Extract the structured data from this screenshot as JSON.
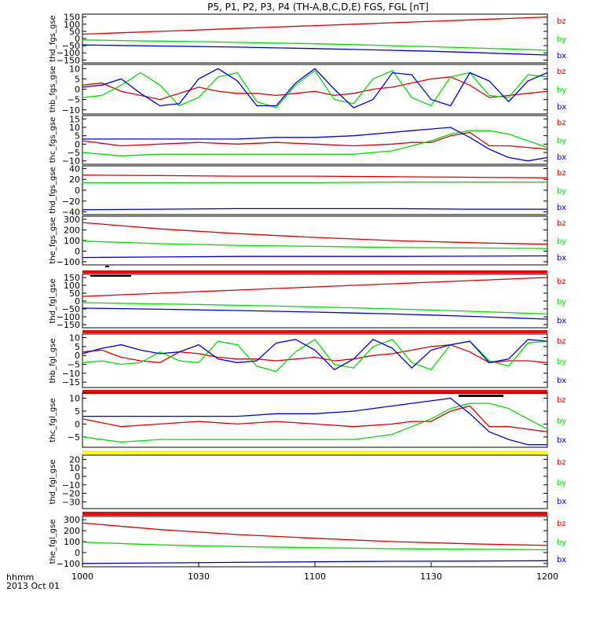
{
  "title": "P5, P1, P2, P3, P4 (TH-A,B,C,D,E) FGS, FGL [nT]",
  "x_axis": {
    "ticks": [
      "1000",
      "1030",
      "1100",
      "1130",
      "1200"
    ],
    "label_line1": "hhmm",
    "label_line2": "2013 Oct 01"
  },
  "colors": {
    "bz": "#dd0000",
    "by": "#00dd00",
    "bx": "#0000dd",
    "bar_red": "#ff0000",
    "bar_yellow": "#ffff00",
    "bar_black": "#000000"
  },
  "chart_data": [
    {
      "type": "line",
      "ylabel": "thd_fgs_gse",
      "yticks": [
        "150",
        "100",
        "50",
        "0",
        "−50",
        "−100",
        "−150"
      ],
      "ylim": [
        -170,
        170
      ],
      "x": [
        1000,
        1010,
        1020,
        1030,
        1040,
        1050,
        1100,
        1110,
        1120,
        1130,
        1140,
        1150,
        1200
      ],
      "series": [
        {
          "name": "bz",
          "values": [
            30,
            40,
            50,
            60,
            70,
            80,
            90,
            100,
            110,
            120,
            130,
            140,
            150
          ]
        },
        {
          "name": "by",
          "values": [
            -10,
            -14,
            -18,
            -22,
            -27,
            -32,
            -37,
            -43,
            -50,
            -57,
            -65,
            -73,
            -82
          ]
        },
        {
          "name": "bx",
          "values": [
            -45,
            -48,
            -52,
            -56,
            -60,
            -65,
            -70,
            -76,
            -82,
            -89,
            -97,
            -106,
            -115
          ]
        }
      ],
      "legend": [
        "bz",
        "by",
        "bx"
      ]
    },
    {
      "type": "line",
      "ylabel": "thb_fgs_gse",
      "yticks": [
        "10",
        "5",
        "0",
        "−5",
        "−10"
      ],
      "ylim": [
        -12,
        12
      ],
      "x": [
        1000,
        1005,
        1010,
        1015,
        1020,
        1025,
        1030,
        1035,
        1040,
        1045,
        1050,
        1055,
        1100,
        1105,
        1110,
        1115,
        1120,
        1125,
        1130,
        1135,
        1140,
        1145,
        1150,
        1155,
        1200
      ],
      "series": [
        {
          "name": "bz",
          "values": [
            2,
            3,
            -1,
            -3,
            -5,
            -2,
            1,
            -1,
            -2,
            -2,
            -3,
            -2,
            -1,
            -3,
            -2,
            0,
            1,
            3,
            5,
            6,
            2,
            -4,
            -3,
            -2,
            -1
          ]
        },
        {
          "name": "by",
          "values": [
            -4,
            -3,
            2,
            8,
            2,
            -8,
            -4,
            6,
            8,
            -6,
            -9,
            2,
            9,
            -5,
            -7,
            5,
            9,
            -4,
            -8,
            6,
            8,
            -3,
            -4,
            7,
            6
          ]
        },
        {
          "name": "bx",
          "values": [
            1,
            2,
            5,
            -2,
            -8,
            -7,
            5,
            10,
            4,
            -8,
            -8,
            3,
            10,
            0,
            -9,
            -5,
            8,
            7,
            -5,
            -8,
            8,
            4,
            -6,
            4,
            8
          ]
        }
      ],
      "legend": [
        "bz",
        "by",
        "bx"
      ]
    },
    {
      "type": "line",
      "ylabel": "thc_fgs_gse",
      "yticks": [
        "15",
        "10",
        "5",
        "0",
        "−5",
        "−10"
      ],
      "ylim": [
        -12,
        17
      ],
      "x": [
        1000,
        1010,
        1020,
        1030,
        1040,
        1050,
        1100,
        1110,
        1120,
        1125,
        1130,
        1135,
        1140,
        1145,
        1150,
        1155,
        1200
      ],
      "series": [
        {
          "name": "bz",
          "values": [
            2,
            -1,
            0,
            1,
            0,
            1,
            0,
            -1,
            0,
            1,
            1,
            5,
            7,
            -1,
            -1,
            -2,
            -3
          ]
        },
        {
          "name": "by",
          "values": [
            -5,
            -7,
            -6,
            -6,
            -6,
            -6,
            -6,
            -6,
            -4,
            -1,
            2,
            6,
            8,
            8,
            6,
            2,
            -2
          ]
        },
        {
          "name": "bx",
          "values": [
            3,
            3,
            3,
            3,
            3,
            4,
            4,
            5,
            7,
            8,
            9,
            10,
            4,
            -3,
            -8,
            -10,
            -8
          ]
        }
      ],
      "legend": [
        "bz",
        "by",
        "bx"
      ]
    },
    {
      "type": "line",
      "ylabel": "thd_fgs_gse",
      "yticks": [
        "40",
        "20",
        "0",
        "−20",
        "−40"
      ],
      "ylim": [
        -45,
        45
      ],
      "x": [
        1000,
        1020,
        1040,
        1100,
        1120,
        1140,
        1200
      ],
      "series": [
        {
          "name": "bz",
          "values": [
            28,
            27,
            26,
            26,
            25,
            24,
            23
          ]
        },
        {
          "name": "by",
          "values": [
            14,
            14,
            14,
            14,
            15,
            15,
            15
          ]
        },
        {
          "name": "bx",
          "values": [
            -36,
            -35,
            -34,
            -34,
            -34,
            -35,
            -35
          ]
        }
      ],
      "legend": [
        "bz",
        "by",
        "bx"
      ]
    },
    {
      "type": "line",
      "ylabel": "the_fgs_gse",
      "yticks": [
        "300",
        "200",
        "100",
        "0",
        "−100"
      ],
      "ylim": [
        -130,
        330
      ],
      "x": [
        1000,
        1020,
        1040,
        1100,
        1120,
        1140,
        1200
      ],
      "series": [
        {
          "name": "bz",
          "values": [
            270,
            210,
            165,
            130,
            100,
            80,
            65
          ]
        },
        {
          "name": "by",
          "values": [
            95,
            70,
            55,
            45,
            35,
            30,
            25
          ]
        },
        {
          "name": "bx",
          "values": [
            -60,
            -55,
            -50,
            -50,
            -50,
            -48,
            -45
          ]
        }
      ],
      "legend": [
        "bz",
        "by",
        "bx"
      ]
    },
    {
      "type": "line",
      "ylabel": "thd_fgl_gse",
      "yticks": [
        "150",
        "100",
        "50",
        "0",
        "−50",
        "−100",
        "−150"
      ],
      "ylim": [
        -170,
        170
      ],
      "x": [
        1000,
        1010,
        1020,
        1030,
        1040,
        1050,
        1100,
        1110,
        1120,
        1130,
        1140,
        1150,
        1200
      ],
      "series": [
        {
          "name": "bz",
          "values": [
            30,
            40,
            50,
            60,
            70,
            80,
            90,
            100,
            110,
            120,
            130,
            140,
            150
          ]
        },
        {
          "name": "by",
          "values": [
            -10,
            -14,
            -18,
            -22,
            -27,
            -32,
            -37,
            -43,
            -50,
            -57,
            -65,
            -73,
            -82
          ]
        },
        {
          "name": "bx",
          "values": [
            -45,
            -48,
            -52,
            -56,
            -60,
            -65,
            -70,
            -76,
            -82,
            -89,
            -97,
            -106,
            -115
          ]
        }
      ],
      "legend": [
        "bz",
        "by",
        "bx"
      ]
    },
    {
      "type": "line",
      "ylabel": "thb_fgl_gse",
      "yticks": [
        "10",
        "5",
        "0",
        "−5",
        "−10",
        "−15"
      ],
      "ylim": [
        -18,
        12
      ],
      "x": [
        1000,
        1005,
        1010,
        1015,
        1020,
        1025,
        1030,
        1035,
        1040,
        1045,
        1050,
        1055,
        1100,
        1105,
        1110,
        1115,
        1120,
        1125,
        1130,
        1135,
        1140,
        1145,
        1150,
        1155,
        1200
      ],
      "series": [
        {
          "name": "bz",
          "values": [
            2,
            3,
            -1,
            -3,
            -4,
            2,
            1,
            -1,
            -2,
            -2,
            -3,
            -2,
            -1,
            -3,
            -2,
            0,
            1,
            3,
            5,
            6,
            2,
            -4,
            -3,
            -3,
            -4
          ]
        },
        {
          "name": "by",
          "values": [
            -4,
            -3,
            -5,
            -4,
            2,
            -3,
            -4,
            8,
            6,
            -6,
            -9,
            2,
            9,
            -5,
            -7,
            5,
            9,
            -4,
            -8,
            6,
            8,
            -3,
            -6,
            7,
            8
          ]
        },
        {
          "name": "bx",
          "values": [
            1,
            4,
            6,
            3,
            1,
            2,
            6,
            -2,
            -4,
            -3,
            7,
            9,
            3,
            -8,
            -2,
            9,
            4,
            -7,
            3,
            6,
            8,
            -4,
            -2,
            9,
            8
          ]
        }
      ],
      "legend": [
        "bz",
        "by",
        "bx"
      ]
    },
    {
      "type": "line",
      "ylabel": "thc_fgl_gse",
      "yticks": [
        "10",
        "5",
        "0",
        "−5"
      ],
      "ylim": [
        -9,
        12
      ],
      "x": [
        1000,
        1010,
        1020,
        1030,
        1040,
        1050,
        1100,
        1110,
        1120,
        1125,
        1130,
        1135,
        1140,
        1145,
        1150,
        1155,
        1200
      ],
      "series": [
        {
          "name": "bz",
          "values": [
            2,
            -1,
            0,
            1,
            0,
            1,
            0,
            -1,
            0,
            1,
            1,
            5,
            7,
            -1,
            -1,
            -2,
            -3
          ]
        },
        {
          "name": "by",
          "values": [
            -5,
            -7,
            -6,
            -6,
            -6,
            -6,
            -6,
            -6,
            -4,
            -1,
            2,
            6,
            8,
            8,
            6,
            2,
            -2
          ]
        },
        {
          "name": "bx",
          "values": [
            3,
            3,
            3,
            3,
            3,
            4,
            4,
            5,
            7,
            8,
            9,
            10,
            4,
            -3,
            -6,
            -8,
            -8
          ]
        }
      ],
      "legend": [
        "bz",
        "by",
        "bx"
      ]
    },
    {
      "type": "line",
      "ylabel": "thd_fgl_gse",
      "yticks": [
        "20",
        "10",
        "0",
        "−10",
        "−20",
        "−30"
      ],
      "ylim": [
        -38,
        25
      ],
      "x": [
        1000,
        1200
      ],
      "series": [],
      "legend": [
        "bz",
        "by",
        "bx"
      ]
    },
    {
      "type": "line",
      "ylabel": "the_fgl_gse",
      "yticks": [
        "300",
        "200",
        "100",
        "0",
        "−100"
      ],
      "ylim": [
        -130,
        330
      ],
      "x": [
        1000,
        1020,
        1040,
        1100,
        1120,
        1140,
        1200
      ],
      "series": [
        {
          "name": "bz",
          "values": [
            270,
            210,
            165,
            130,
            100,
            80,
            65
          ]
        },
        {
          "name": "by",
          "values": [
            95,
            70,
            55,
            45,
            35,
            30,
            25
          ]
        },
        {
          "name": "bx",
          "values": [
            -100,
            -95,
            -90,
            -85,
            -80,
            -78,
            -75
          ]
        }
      ],
      "legend": [
        "bz",
        "by",
        "bx"
      ]
    }
  ]
}
